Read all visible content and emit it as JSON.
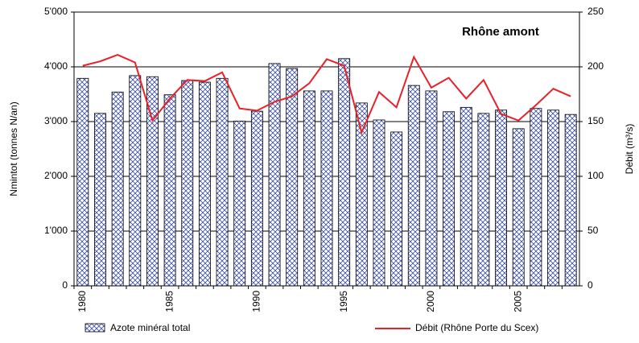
{
  "chart_data": {
    "type": "bar-line",
    "title": "Rhône amont",
    "y_label": "Nmintot (tonnes N/an)",
    "y2_label": "Débit (m³/s)",
    "categories": [
      "1980",
      null,
      null,
      null,
      null,
      "1985",
      null,
      null,
      null,
      null,
      "1990",
      null,
      null,
      null,
      null,
      "1995",
      null,
      null,
      null,
      null,
      "2000",
      null,
      null,
      null,
      null,
      "2005",
      null,
      null,
      null
    ],
    "series": [
      {
        "name": "Azote minéral total",
        "type": "bar",
        "color": "#3a4f9e",
        "values": [
          3790,
          3150,
          3540,
          3840,
          3820,
          3490,
          3750,
          3720,
          3790,
          3010,
          3190,
          4060,
          3970,
          3560,
          3560,
          4150,
          3340,
          3030,
          2810,
          3660,
          3560,
          3180,
          3260,
          3150,
          3210,
          2870,
          3240,
          3210,
          3130
        ]
      },
      {
        "name": "Débit (Rhône Porte du Scex)",
        "type": "line",
        "axis": "y2",
        "color": "#e8202a",
        "values": [
          201,
          205,
          211,
          204,
          151,
          171,
          188,
          187,
          195,
          162,
          160,
          168,
          173,
          185,
          207,
          201,
          140,
          177,
          163,
          209,
          181,
          190,
          171,
          188,
          157,
          151,
          165,
          180,
          173
        ]
      }
    ],
    "ylim": [
      0,
      5000
    ],
    "yticks": [
      0,
      {
        "value": 1000,
        "label": "1'000"
      },
      {
        "value": 2000,
        "label": "2'000"
      },
      {
        "value": 3000,
        "label": "3'000"
      },
      {
        "value": 4000,
        "label": "4'000"
      },
      {
        "value": 5000,
        "label": "5'000"
      }
    ],
    "y2lim": [
      0,
      250
    ],
    "y2ticks": [
      0,
      50,
      100,
      150,
      200,
      250
    ],
    "grid": true
  }
}
